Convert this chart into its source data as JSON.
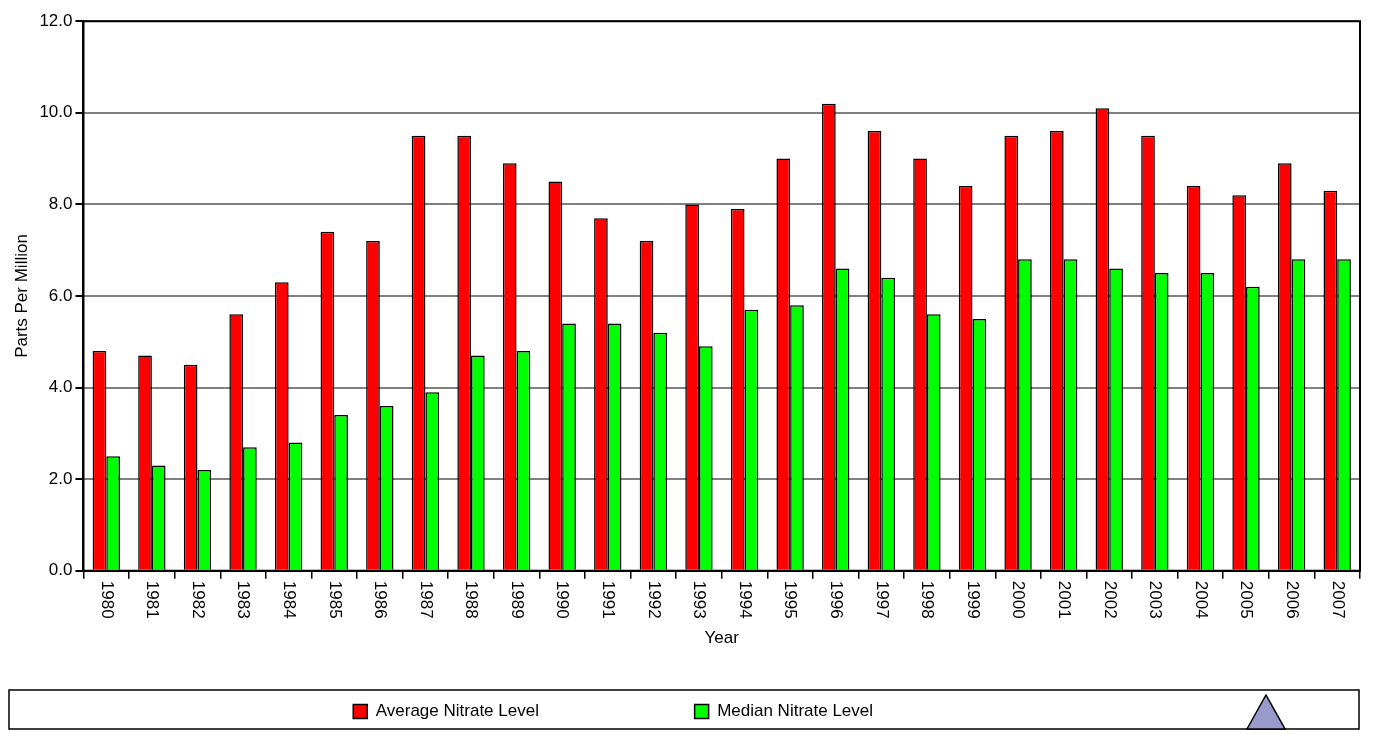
{
  "chart_data": {
    "type": "bar",
    "xlabel": "Year",
    "ylabel": "Parts Per Million",
    "categories": [
      "1980",
      "1981",
      "1982",
      "1983",
      "1984",
      "1985",
      "1986",
      "1987",
      "1988",
      "1989",
      "1990",
      "1991",
      "1992",
      "1993",
      "1994",
      "1995",
      "1996",
      "1997",
      "1998",
      "1999",
      "2000",
      "2001",
      "2002",
      "2003",
      "2004",
      "2005",
      "2006",
      "2007"
    ],
    "series": [
      {
        "name": "Average Nitrate Level",
        "color": "#ff0000",
        "values": [
          4.8,
          4.7,
          4.5,
          5.6,
          6.3,
          7.4,
          7.2,
          9.5,
          9.5,
          8.9,
          8.5,
          7.7,
          7.2,
          8.0,
          7.9,
          9.0,
          10.2,
          9.6,
          9.0,
          8.4,
          9.5,
          9.6,
          10.1,
          9.5,
          8.4,
          8.2,
          8.9,
          8.3
        ]
      },
      {
        "name": "Median Nitrate Level",
        "color": "#00ff00",
        "values": [
          2.5,
          2.3,
          2.2,
          2.7,
          2.8,
          3.4,
          3.6,
          3.9,
          4.7,
          4.8,
          5.4,
          5.4,
          5.2,
          4.9,
          5.7,
          5.8,
          6.6,
          6.4,
          5.6,
          5.5,
          6.8,
          6.8,
          6.6,
          6.5,
          6.5,
          6.2,
          6.8,
          6.8
        ]
      }
    ],
    "ylim": [
      0,
      12
    ],
    "yticks": [
      {
        "value": 0,
        "label": "0.0"
      },
      {
        "value": 2,
        "label": "2.0"
      },
      {
        "value": 4,
        "label": "4.0"
      },
      {
        "value": 6,
        "label": "6.0"
      },
      {
        "value": 8,
        "label": "8.0"
      },
      {
        "value": 10,
        "label": "10.0"
      },
      {
        "value": 12,
        "label": "12.0"
      }
    ],
    "grid": "y",
    "legend": "bottom"
  }
}
